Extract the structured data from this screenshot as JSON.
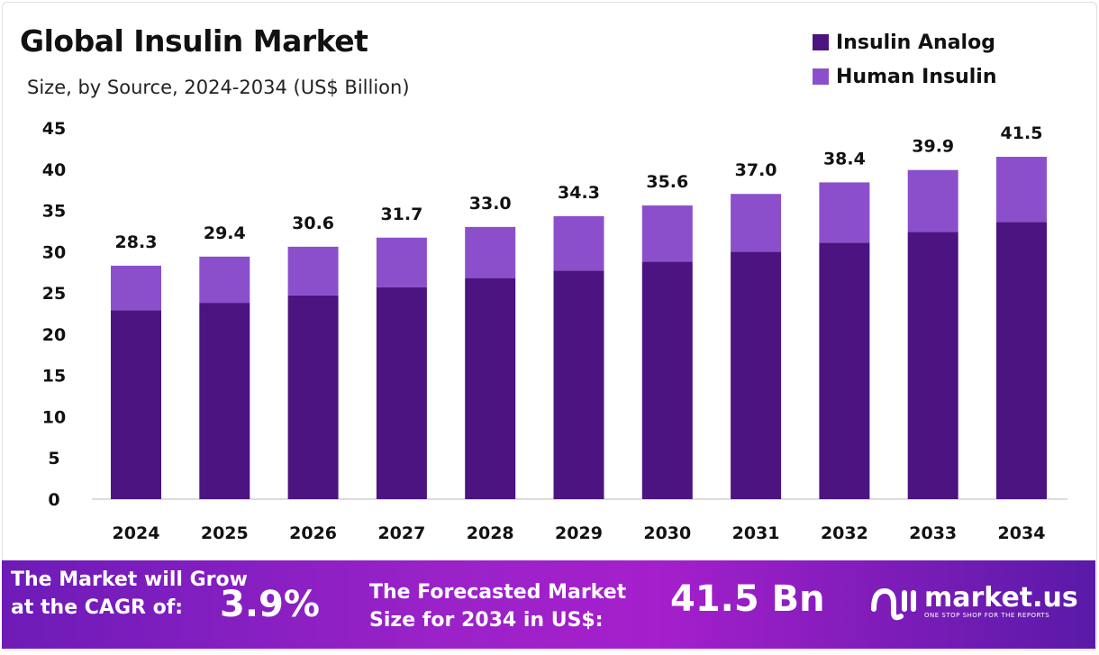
{
  "chart_data": {
    "type": "bar",
    "stacked": true,
    "title": "Global Insulin Market",
    "subtitle": "Size, by Source, 2024-2034 (US$ Billion)",
    "categories": [
      "2024",
      "2025",
      "2026",
      "2027",
      "2028",
      "2029",
      "2030",
      "2031",
      "2032",
      "2033",
      "2034"
    ],
    "series": [
      {
        "name": "Insulin Analog",
        "color": "#4b1480",
        "values": [
          22.9,
          23.8,
          24.7,
          25.7,
          26.8,
          27.7,
          28.8,
          30.0,
          31.1,
          32.4,
          33.6
        ]
      },
      {
        "name": "Human Insulin",
        "color": "#8b4fcc",
        "values": [
          5.4,
          5.6,
          5.9,
          6.0,
          6.2,
          6.6,
          6.8,
          7.0,
          7.3,
          7.5,
          7.9
        ]
      }
    ],
    "totals": [
      "28.3",
      "29.4",
      "30.6",
      "31.7",
      "33.0",
      "34.3",
      "35.6",
      "37.0",
      "38.4",
      "39.9",
      "41.5"
    ],
    "ylim": [
      0,
      45
    ],
    "yticks": [
      "0",
      "5",
      "10",
      "15",
      "20",
      "25",
      "30",
      "35",
      "40",
      "45"
    ],
    "grid": false,
    "legend_position": "top-right"
  },
  "footer": {
    "grow_line1": "The Market will Grow",
    "grow_line2": "at the CAGR of:",
    "cagr": "3.9%",
    "forecast_line1": "The Forecasted Market",
    "forecast_line2": "Size for 2034 in US$:",
    "forecast_value": "41.5 Bn",
    "logo_name": "market.us",
    "logo_tagline": "ONE STOP SHOP FOR THE REPORTS"
  }
}
